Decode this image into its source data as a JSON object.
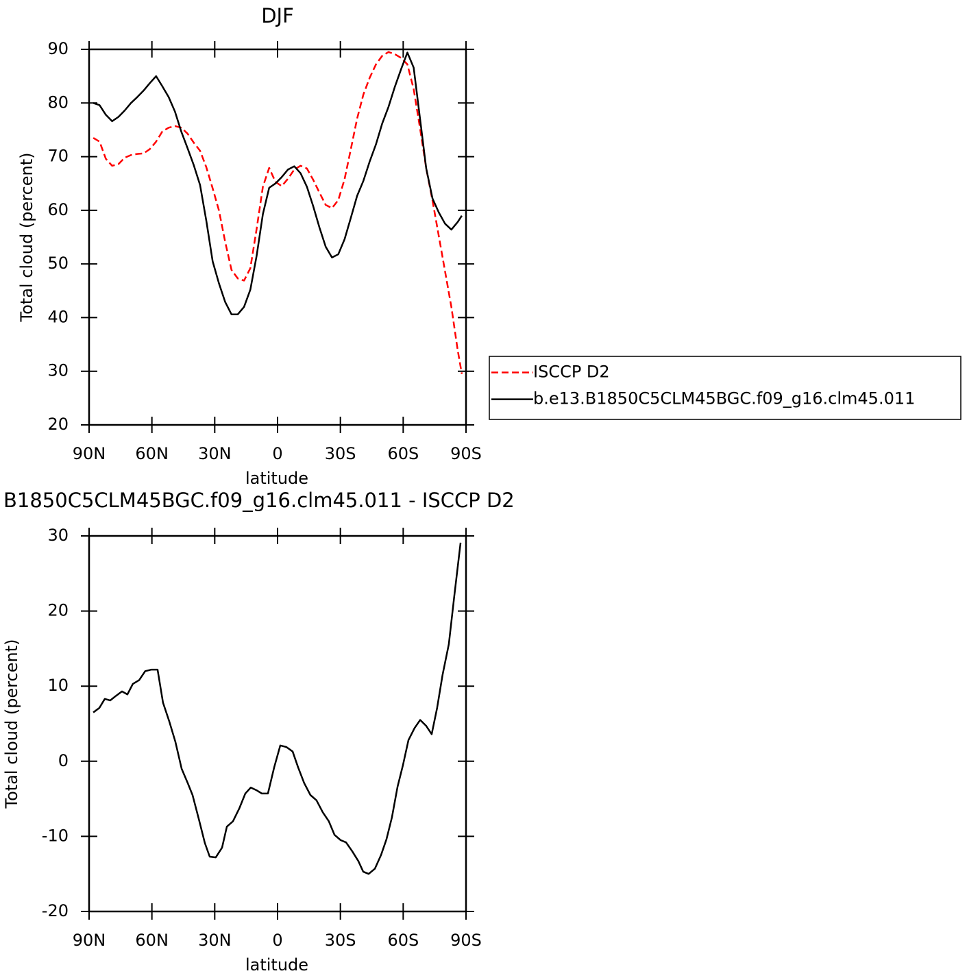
{
  "chart_data": [
    {
      "type": "line",
      "title": "DJF",
      "xlabel": "latitude",
      "ylabel": "Total cloud (percent)",
      "x": [
        88,
        85,
        82,
        79,
        76,
        73,
        70,
        67,
        64,
        61,
        58,
        55,
        52,
        49,
        46,
        43,
        40,
        37,
        34,
        31,
        28,
        25,
        22,
        19,
        16,
        13,
        10,
        7,
        4,
        1,
        -2,
        -5,
        -8,
        -11,
        -14,
        -17,
        -20,
        -23,
        -26,
        -29,
        -32,
        -35,
        -38,
        -41,
        -44,
        -47,
        -50,
        -53,
        -56,
        -59,
        -62,
        -65,
        -68,
        -71,
        -74,
        -77,
        -80,
        -83,
        -86,
        -88
      ],
      "series": [
        {
          "name": "ISCCP D2",
          "color": "#ff0000",
          "dashed": true,
          "values": [
            73.5,
            72.8,
            69.6,
            68.3,
            68.6,
            69.8,
            70.3,
            70.5,
            70.6,
            71.4,
            72.8,
            74.7,
            75.4,
            75.7,
            75.4,
            74.3,
            72.6,
            71.1,
            68.0,
            64.1,
            60.0,
            54.1,
            48.9,
            47.3,
            46.9,
            49.2,
            56.5,
            64.4,
            67.9,
            65.3,
            64.5,
            65.9,
            67.6,
            68.3,
            67.8,
            65.7,
            63.3,
            61.0,
            60.4,
            61.9,
            65.8,
            71.4,
            77.1,
            81.6,
            84.7,
            87.2,
            88.8,
            89.5,
            89.1,
            88.4,
            87.2,
            82.6,
            75.4,
            67.8,
            61.8,
            55.2,
            48.6,
            42.0,
            34.0,
            29.5
          ]
        },
        {
          "name": "b.e13.B1850C5CLM45BGC.f09_g16.clm45.011",
          "color": "#000000",
          "dashed": false,
          "values": [
            80.0,
            79.6,
            77.8,
            76.6,
            77.4,
            78.6,
            80.0,
            81.1,
            82.3,
            83.7,
            85.0,
            83.1,
            81.1,
            78.4,
            74.7,
            71.6,
            68.4,
            64.7,
            58.0,
            50.5,
            46.4,
            42.9,
            40.6,
            40.6,
            42.0,
            45.2,
            51.5,
            59.3,
            64.2,
            65.0,
            66.2,
            67.6,
            68.2,
            66.9,
            64.4,
            60.8,
            56.8,
            53.2,
            51.2,
            51.8,
            54.6,
            58.6,
            62.7,
            65.5,
            69.1,
            72.3,
            76.2,
            79.3,
            83.0,
            86.3,
            89.4,
            86.6,
            77.2,
            67.8,
            62.2,
            59.6,
            57.5,
            56.4,
            57.8,
            59.0
          ]
        }
      ],
      "xlim": [
        90,
        -90
      ],
      "xticks": [
        {
          "value": 90,
          "label": "90N"
        },
        {
          "value": 60,
          "label": "60N"
        },
        {
          "value": 30,
          "label": "30N"
        },
        0,
        {
          "value": -30,
          "label": "30S"
        },
        {
          "value": -60,
          "label": "60S"
        },
        {
          "value": -90,
          "label": "90S"
        }
      ],
      "ylim": [
        20,
        90
      ],
      "yticks": [
        20,
        30,
        40,
        50,
        60,
        70,
        80,
        90
      ],
      "legend": "right"
    },
    {
      "type": "line",
      "title": "B1850C5CLM45BGC.f09_g16.clm45.011 - ISCCP D2",
      "xlabel": "latitude",
      "ylabel": "Total cloud (percent)",
      "x": [
        88.0,
        85.1,
        82.5,
        79.9,
        77.2,
        74.3,
        71.7,
        69.1,
        66.1,
        63.2,
        60.2,
        57.3,
        54.7,
        51.7,
        48.8,
        45.8,
        42.9,
        40.6,
        37.6,
        34.7,
        32.4,
        29.5,
        26.5,
        24.2,
        21.3,
        18.3,
        15.4,
        12.8,
        9.8,
        7.5,
        4.6,
        1.6,
        -1.3,
        -4.2,
        -7.2,
        -9.8,
        -12.7,
        -15.7,
        -18.6,
        -21.6,
        -24.5,
        -27.2,
        -30.1,
        -32.7,
        -35.7,
        -38.6,
        -40.9,
        -43.5,
        -46.5,
        -49.4,
        -52.0,
        -54.6,
        -57.3,
        -59.9,
        -62.5,
        -65.4,
        -68.1,
        -71.0,
        -73.6,
        -76.2,
        -78.8,
        -81.8,
        -84.4,
        -87.4
      ],
      "values": [
        6.5,
        7.1,
        8.3,
        8.1,
        8.7,
        9.3,
        8.9,
        10.3,
        10.8,
        12.0,
        12.2,
        12.2,
        7.8,
        5.3,
        2.6,
        -1.0,
        -2.9,
        -4.5,
        -7.7,
        -10.9,
        -12.7,
        -12.8,
        -11.5,
        -8.7,
        -8.0,
        -6.3,
        -4.3,
        -3.5,
        -3.9,
        -4.3,
        -4.3,
        -0.8,
        2.1,
        1.9,
        1.3,
        -0.8,
        -2.9,
        -4.5,
        -5.2,
        -6.8,
        -8.0,
        -9.8,
        -10.5,
        -10.8,
        -12.0,
        -13.3,
        -14.7,
        -15.0,
        -14.3,
        -12.5,
        -10.4,
        -7.5,
        -3.4,
        -0.5,
        2.8,
        4.4,
        5.5,
        4.7,
        3.6,
        7.1,
        11.5,
        15.6,
        22.0,
        29.1
      ],
      "color": "#000000",
      "xlim": [
        90,
        -90
      ],
      "xticks": [
        {
          "value": 90,
          "label": "90N"
        },
        {
          "value": 60,
          "label": "60N"
        },
        {
          "value": 30,
          "label": "30N"
        },
        0,
        {
          "value": -30,
          "label": "30S"
        },
        {
          "value": -60,
          "label": "60S"
        },
        {
          "value": -90,
          "label": "90S"
        }
      ],
      "ylim": [
        -20,
        30
      ],
      "yticks": [
        -20,
        -10,
        0,
        10,
        20,
        30
      ]
    }
  ]
}
